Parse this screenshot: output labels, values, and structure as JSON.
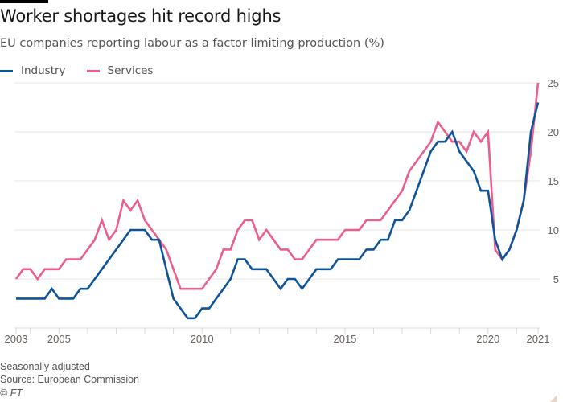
{
  "header": {
    "title": "Worker shortages hit record highs",
    "subtitle": "EU companies reporting labour as a factor limiting production (%)"
  },
  "legend": [
    {
      "label": "Industry",
      "color": "#0f5499"
    },
    {
      "label": "Services",
      "color": "#eb5e8d"
    }
  ],
  "footer": {
    "note": "Seasonally adjusted",
    "source": "Source: European Commission",
    "credit": "© FT"
  },
  "chart_data": {
    "type": "line",
    "title": "Worker shortages hit record highs",
    "subtitle": "EU companies reporting labour as a factor limiting production (%)",
    "xlabel": "",
    "ylabel": "",
    "frequency": "quarterly",
    "x_start": "2003 Q3",
    "x_end": "2021 Q4",
    "x_range": [
      2003.5,
      2021.75
    ],
    "ylim": [
      0,
      25
    ],
    "y_ticks": [
      5,
      10,
      15,
      20,
      25
    ],
    "y_axis_side": "right",
    "x_ticks": [
      {
        "label": "2003",
        "value": 2003.5
      },
      {
        "label": "2005",
        "value": 2005
      },
      {
        "label": "2010",
        "value": 2010
      },
      {
        "label": "2015",
        "value": 2015
      },
      {
        "label": "2020",
        "value": 2020
      },
      {
        "label": "2021",
        "value": 2021.75
      }
    ],
    "x_minor_ticks": [
      2004,
      2006,
      2007,
      2008,
      2009,
      2011,
      2012,
      2013,
      2014,
      2016,
      2017,
      2018,
      2019,
      2021
    ],
    "grid": "horizontal",
    "legend_position": "top-left",
    "series": [
      {
        "name": "Industry",
        "color": "#0f5499",
        "values": [
          3,
          3,
          3,
          3,
          3,
          4,
          3,
          3,
          3,
          4,
          4,
          5,
          6,
          7,
          8,
          9,
          10,
          10,
          10,
          9,
          9,
          6,
          3,
          2,
          1,
          1,
          2,
          2,
          3,
          4,
          5,
          7,
          7,
          6,
          6,
          6,
          5,
          4,
          5,
          5,
          4,
          5,
          6,
          6,
          6,
          7,
          7,
          7,
          7,
          8,
          8,
          9,
          9,
          11,
          11,
          12,
          14,
          16,
          18,
          19,
          19,
          20,
          18,
          17,
          16,
          14,
          14,
          9,
          7,
          8,
          10,
          13,
          20,
          23
        ]
      },
      {
        "name": "Services",
        "color": "#eb5e8d",
        "values": [
          5,
          6,
          6,
          5,
          6,
          6,
          6,
          7,
          7,
          7,
          8,
          9,
          11,
          9,
          10,
          13,
          12,
          13,
          11,
          10,
          9,
          8,
          6,
          4,
          4,
          4,
          4,
          5,
          6,
          8,
          8,
          10,
          11,
          11,
          9,
          10,
          9,
          8,
          8,
          7,
          7,
          8,
          9,
          9,
          9,
          9,
          10,
          10,
          10,
          11,
          11,
          11,
          12,
          13,
          14,
          16,
          17,
          18,
          19,
          21,
          20,
          19,
          19,
          18,
          20,
          19,
          20,
          8,
          7,
          8,
          10,
          13,
          18,
          25
        ]
      }
    ]
  }
}
